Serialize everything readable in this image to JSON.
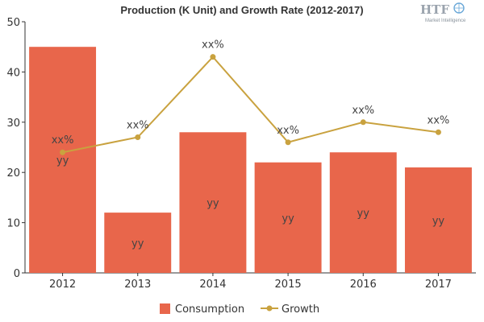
{
  "chart_data": {
    "type": "bar",
    "title": "Production (K Unit) and Growth Rate (2012-2017)",
    "categories": [
      "2012",
      "2013",
      "2014",
      "2015",
      "2016",
      "2017"
    ],
    "ylim": [
      0,
      50
    ],
    "yticks": [
      "0",
      "10",
      "20",
      "30",
      "40",
      "50"
    ],
    "series": [
      {
        "name": "Consumption",
        "kind": "bar",
        "color": "#e8664b",
        "values": [
          45,
          12,
          28,
          22,
          24,
          21
        ],
        "labels": [
          "yy",
          "yy",
          "yy",
          "yy",
          "yy",
          "yy"
        ]
      },
      {
        "name": "Growth",
        "kind": "line",
        "color": "#c9a23f",
        "values": [
          24,
          27,
          43,
          26,
          30,
          28
        ],
        "labels": [
          "xx%",
          "xx%",
          "xx%",
          "xx%",
          "xx%",
          "xx%"
        ]
      }
    ],
    "legend_position": "bottom-center",
    "grid": false
  },
  "logo": {
    "main": "HTF",
    "sub": "Market Intelligence"
  }
}
